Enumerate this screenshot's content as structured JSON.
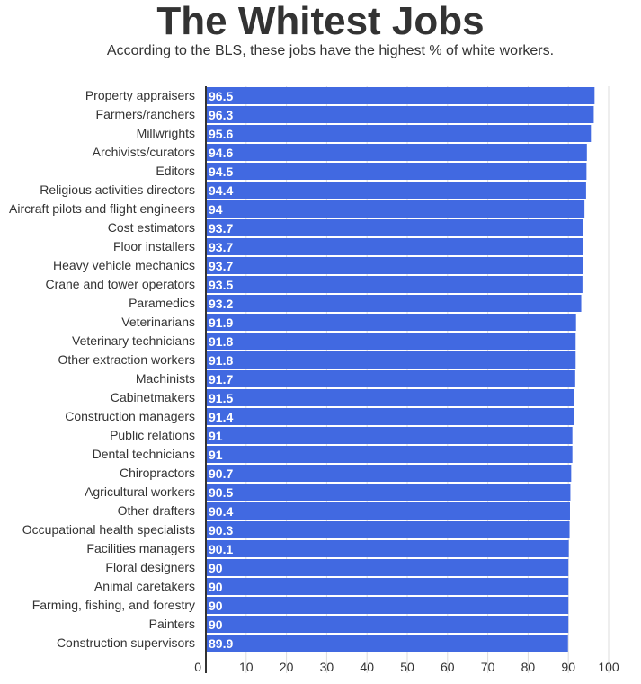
{
  "chart_data": {
    "type": "bar",
    "orientation": "horizontal",
    "title": "The Whitest Jobs",
    "subtitle": "According to the BLS, these jobs have the highest % of white workers.",
    "categories": [
      "Property appraisers",
      "Farmers/ranchers",
      "Millwrights",
      "Archivists/curators",
      "Editors",
      "Religious activities directors",
      "Aircraft pilots and flight engineers",
      "Cost estimators",
      "Floor installers",
      "Heavy vehicle mechanics",
      "Crane and tower operators",
      "Paramedics",
      "Veterinarians",
      "Veterinary technicians",
      "Other extraction workers",
      "Machinists",
      "Cabinetmakers",
      "Construction managers",
      "Public relations",
      "Dental technicians",
      "Chiropractors",
      "Agricultural workers",
      "Other drafters",
      "Occupational health specialists",
      "Facilities managers",
      "Floral designers",
      "Animal caretakers",
      "Farming, fishing, and forestry",
      "Painters",
      "Construction supervisors"
    ],
    "values": [
      96.5,
      96.3,
      95.6,
      94.6,
      94.5,
      94.4,
      94,
      93.7,
      93.7,
      93.7,
      93.5,
      93.2,
      91.9,
      91.8,
      91.8,
      91.7,
      91.5,
      91.4,
      91,
      91,
      90.7,
      90.5,
      90.4,
      90.3,
      90.1,
      90,
      90,
      90,
      90,
      89.9
    ],
    "labels": [
      "96.5",
      "96.3",
      "95.6",
      "94.6",
      "94.5",
      "94.4",
      "94",
      "93.7",
      "93.7",
      "93.7",
      "93.5",
      "93.2",
      "91.9",
      "91.8",
      "91.8",
      "91.7",
      "91.5",
      "91.4",
      "91",
      "91",
      "90.7",
      "90.5",
      "90.4",
      "90.3",
      "90.1",
      "90",
      "90",
      "90",
      "90",
      "89.9"
    ],
    "xticks": [
      "0",
      "10",
      "20",
      "30",
      "40",
      "50",
      "60",
      "70",
      "80",
      "90",
      "100"
    ],
    "xlim": [
      0,
      100
    ],
    "grid": true,
    "bar_color": "#4169e1"
  }
}
